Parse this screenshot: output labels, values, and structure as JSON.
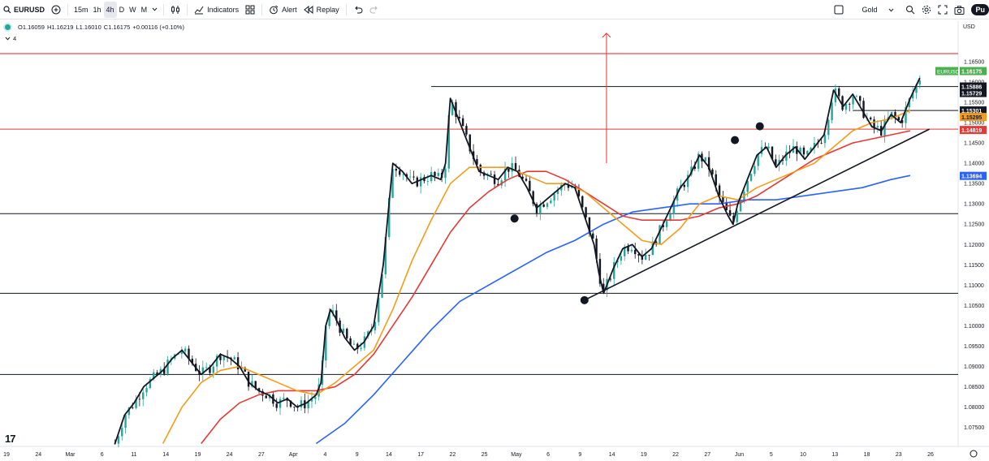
{
  "toolbar": {
    "symbol": "EURUSD",
    "intervals": [
      "15m",
      "1h",
      "4h",
      "D",
      "W",
      "M"
    ],
    "active_interval": "4h",
    "indicators_label": "Indicators",
    "alert_label": "Alert",
    "replay_label": "Replay",
    "theme_label": "Gold",
    "publish_label": "Pu"
  },
  "legend": {
    "open": "O1.16059",
    "high": "H1.16219",
    "low": "L1.16010",
    "close": "C1.16175",
    "change": "+0.00116 (+0.10%)",
    "indicator_count": "4"
  },
  "chart_data": {
    "type": "line",
    "symbol": "EURUSD",
    "timeframe": "4h",
    "currency": "USD",
    "ylim": [
      1.0703,
      1.175
    ],
    "y_ticks": [
      1.075,
      1.08,
      1.085,
      1.09,
      1.095,
      1.1,
      1.105,
      1.11,
      1.115,
      1.12,
      1.125,
      1.13,
      1.135,
      1.14,
      1.145,
      1.15,
      1.155,
      1.16,
      1.165
    ],
    "x_ticks": [
      "19",
      "24",
      "Mar",
      "6",
      "11",
      "14",
      "19",
      "24",
      "27",
      "Apr",
      "4",
      "9",
      "14",
      "17",
      "22",
      "25",
      "May",
      "6",
      "9",
      "14",
      "19",
      "22",
      "27",
      "Jun",
      "5",
      "10",
      "13",
      "18",
      "23",
      "26"
    ],
    "price_path": [
      [
        0.12,
        1.071
      ],
      [
        0.13,
        1.078
      ],
      [
        0.14,
        1.081
      ],
      [
        0.15,
        1.085
      ],
      [
        0.16,
        1.087
      ],
      [
        0.17,
        1.089
      ],
      [
        0.18,
        1.092
      ],
      [
        0.19,
        1.094
      ],
      [
        0.2,
        1.091
      ],
      [
        0.21,
        1.088
      ],
      [
        0.22,
        1.09
      ],
      [
        0.23,
        1.093
      ],
      [
        0.24,
        1.092
      ],
      [
        0.25,
        1.09
      ],
      [
        0.26,
        1.086
      ],
      [
        0.27,
        1.084
      ],
      [
        0.28,
        1.083
      ],
      [
        0.29,
        1.081
      ],
      [
        0.3,
        1.082
      ],
      [
        0.31,
        1.08
      ],
      [
        0.32,
        1.081
      ],
      [
        0.33,
        1.083
      ],
      [
        0.335,
        1.086
      ],
      [
        0.34,
        1.1
      ],
      [
        0.345,
        1.104
      ],
      [
        0.35,
        1.102
      ],
      [
        0.36,
        1.097
      ],
      [
        0.37,
        1.094
      ],
      [
        0.38,
        1.096
      ],
      [
        0.39,
        1.1
      ],
      [
        0.4,
        1.115
      ],
      [
        0.41,
        1.14
      ],
      [
        0.42,
        1.138
      ],
      [
        0.43,
        1.135
      ],
      [
        0.44,
        1.136
      ],
      [
        0.45,
        1.137
      ],
      [
        0.46,
        1.136
      ],
      [
        0.465,
        1.14
      ],
      [
        0.47,
        1.156
      ],
      [
        0.48,
        1.15
      ],
      [
        0.49,
        1.144
      ],
      [
        0.5,
        1.138
      ],
      [
        0.51,
        1.137
      ],
      [
        0.52,
        1.136
      ],
      [
        0.53,
        1.139
      ],
      [
        0.54,
        1.138
      ],
      [
        0.55,
        1.134
      ],
      [
        0.56,
        1.129
      ],
      [
        0.57,
        1.131
      ],
      [
        0.58,
        1.133
      ],
      [
        0.59,
        1.135
      ],
      [
        0.6,
        1.134
      ],
      [
        0.61,
        1.127
      ],
      [
        0.62,
        1.12
      ],
      [
        0.625,
        1.113
      ],
      [
        0.63,
        1.108
      ],
      [
        0.64,
        1.114
      ],
      [
        0.65,
        1.119
      ],
      [
        0.66,
        1.12
      ],
      [
        0.67,
        1.117
      ],
      [
        0.68,
        1.119
      ],
      [
        0.69,
        1.124
      ],
      [
        0.7,
        1.129
      ],
      [
        0.71,
        1.134
      ],
      [
        0.72,
        1.137
      ],
      [
        0.73,
        1.142
      ],
      [
        0.74,
        1.139
      ],
      [
        0.75,
        1.132
      ],
      [
        0.76,
        1.127
      ],
      [
        0.765,
        1.125
      ],
      [
        0.77,
        1.13
      ],
      [
        0.78,
        1.136
      ],
      [
        0.79,
        1.142
      ],
      [
        0.8,
        1.144
      ],
      [
        0.81,
        1.139
      ],
      [
        0.82,
        1.142
      ],
      [
        0.83,
        1.144
      ],
      [
        0.84,
        1.141
      ],
      [
        0.85,
        1.144
      ],
      [
        0.86,
        1.147
      ],
      [
        0.87,
        1.158
      ],
      [
        0.88,
        1.154
      ],
      [
        0.89,
        1.157
      ],
      [
        0.9,
        1.153
      ],
      [
        0.91,
        1.149
      ],
      [
        0.92,
        1.148
      ],
      [
        0.93,
        1.152
      ],
      [
        0.94,
        1.15
      ],
      [
        0.95,
        1.156
      ],
      [
        0.96,
        1.161
      ]
    ],
    "ma_orange": [
      [
        0.17,
        1.071
      ],
      [
        0.19,
        1.08
      ],
      [
        0.21,
        1.086
      ],
      [
        0.23,
        1.089
      ],
      [
        0.25,
        1.09
      ],
      [
        0.27,
        1.088
      ],
      [
        0.29,
        1.086
      ],
      [
        0.31,
        1.084
      ],
      [
        0.33,
        1.083
      ],
      [
        0.35,
        1.086
      ],
      [
        0.37,
        1.09
      ],
      [
        0.39,
        1.094
      ],
      [
        0.41,
        1.104
      ],
      [
        0.43,
        1.116
      ],
      [
        0.45,
        1.126
      ],
      [
        0.47,
        1.135
      ],
      [
        0.49,
        1.139
      ],
      [
        0.51,
        1.139
      ],
      [
        0.53,
        1.139
      ],
      [
        0.55,
        1.137
      ],
      [
        0.57,
        1.135
      ],
      [
        0.59,
        1.135
      ],
      [
        0.61,
        1.133
      ],
      [
        0.63,
        1.129
      ],
      [
        0.65,
        1.125
      ],
      [
        0.67,
        1.121
      ],
      [
        0.69,
        1.12
      ],
      [
        0.71,
        1.124
      ],
      [
        0.73,
        1.13
      ],
      [
        0.75,
        1.132
      ],
      [
        0.77,
        1.131
      ],
      [
        0.79,
        1.134
      ],
      [
        0.81,
        1.136
      ],
      [
        0.83,
        1.138
      ],
      [
        0.85,
        1.14
      ],
      [
        0.87,
        1.144
      ],
      [
        0.89,
        1.148
      ],
      [
        0.91,
        1.15
      ],
      [
        0.93,
        1.151
      ],
      [
        0.95,
        1.153
      ]
    ],
    "ma_red": [
      [
        0.21,
        1.071
      ],
      [
        0.23,
        1.077
      ],
      [
        0.25,
        1.081
      ],
      [
        0.27,
        1.083
      ],
      [
        0.29,
        1.084
      ],
      [
        0.31,
        1.084
      ],
      [
        0.33,
        1.084
      ],
      [
        0.35,
        1.085
      ],
      [
        0.37,
        1.088
      ],
      [
        0.39,
        1.093
      ],
      [
        0.41,
        1.1
      ],
      [
        0.43,
        1.107
      ],
      [
        0.45,
        1.115
      ],
      [
        0.47,
        1.123
      ],
      [
        0.49,
        1.129
      ],
      [
        0.51,
        1.133
      ],
      [
        0.53,
        1.136
      ],
      [
        0.55,
        1.138
      ],
      [
        0.57,
        1.138
      ],
      [
        0.59,
        1.136
      ],
      [
        0.61,
        1.133
      ],
      [
        0.63,
        1.13
      ],
      [
        0.65,
        1.127
      ],
      [
        0.67,
        1.126
      ],
      [
        0.69,
        1.126
      ],
      [
        0.71,
        1.126
      ],
      [
        0.73,
        1.127
      ],
      [
        0.75,
        1.129
      ],
      [
        0.77,
        1.13
      ],
      [
        0.79,
        1.132
      ],
      [
        0.81,
        1.135
      ],
      [
        0.83,
        1.138
      ],
      [
        0.85,
        1.141
      ],
      [
        0.87,
        1.143
      ],
      [
        0.89,
        1.145
      ],
      [
        0.91,
        1.146
      ],
      [
        0.93,
        1.147
      ],
      [
        0.95,
        1.148
      ]
    ],
    "ma_blue": [
      [
        0.33,
        1.071
      ],
      [
        0.36,
        1.076
      ],
      [
        0.39,
        1.083
      ],
      [
        0.42,
        1.091
      ],
      [
        0.45,
        1.099
      ],
      [
        0.48,
        1.106
      ],
      [
        0.51,
        1.11
      ],
      [
        0.54,
        1.114
      ],
      [
        0.57,
        1.118
      ],
      [
        0.6,
        1.121
      ],
      [
        0.63,
        1.125
      ],
      [
        0.66,
        1.128
      ],
      [
        0.69,
        1.129
      ],
      [
        0.72,
        1.13
      ],
      [
        0.75,
        1.13
      ],
      [
        0.78,
        1.131
      ],
      [
        0.81,
        1.131
      ],
      [
        0.84,
        1.132
      ],
      [
        0.87,
        1.133
      ],
      [
        0.9,
        1.134
      ],
      [
        0.93,
        1.136
      ],
      [
        0.95,
        1.137
      ]
    ],
    "horizontal_levels": [
      {
        "value": 1.167,
        "color": "#e53935"
      },
      {
        "value": 1.1484,
        "color": "#e53935"
      },
      {
        "value": 1.1276,
        "color": "#131722"
      },
      {
        "value": 1.108,
        "color": "#131722"
      },
      {
        "value": 1.088,
        "color": "#131722"
      },
      {
        "value": 1.1589,
        "color": "#131722",
        "from": 0.45
      },
      {
        "value": 1.153,
        "color": "#131722",
        "from": 0.89
      }
    ],
    "trendline": [
      [
        0.61,
        1.1063
      ],
      [
        0.97,
        1.1484
      ]
    ],
    "arrow": {
      "x": 0.633,
      "from": 1.14,
      "to": 1.172
    },
    "markers": [
      [
        0.537,
        1.1264
      ],
      [
        0.61,
        1.1063
      ],
      [
        0.767,
        1.1457
      ],
      [
        0.793,
        1.1491
      ]
    ],
    "price_labels": [
      {
        "text": "EURUSD",
        "value": "1.16175",
        "bg": "#4caf50",
        "fg": "#ffffff",
        "y": 1.1627
      },
      {
        "text": "",
        "value": "1.15886",
        "bg": "#131722",
        "fg": "#ffffff",
        "y": 1.1589
      },
      {
        "text": "",
        "value": "1.15729",
        "bg": "#131722",
        "fg": "#ffffff",
        "y": 1.1573
      },
      {
        "text": "",
        "value": "1.15301",
        "bg": "#131722",
        "fg": "#ffffff",
        "y": 1.153
      },
      {
        "text": "",
        "value": "1.15295",
        "bg": "#f59c1a",
        "fg": "#131722",
        "y": 1.1514
      },
      {
        "text": "",
        "value": "1.14819",
        "bg": "#e53935",
        "fg": "#ffffff",
        "y": 1.1482
      },
      {
        "text": "",
        "value": "1.13694",
        "bg": "#2962ff",
        "fg": "#ffffff",
        "y": 1.1369
      }
    ]
  },
  "colors": {
    "up": "#26a69a",
    "down": "#131722",
    "ma_orange": "#f59c1a",
    "ma_red": "#e53935",
    "ma_blue": "#2962ff"
  }
}
